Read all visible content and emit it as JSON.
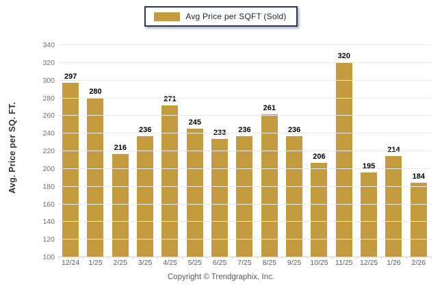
{
  "page": {
    "copyright": "Copyright © Trendgraphix, Inc."
  },
  "legend": {
    "label": "Avg Price per SQFT (Sold)"
  },
  "colors": {
    "bar": "#C49B3E",
    "legend_border": "#24365A",
    "grid": "#e9e9e9",
    "value_label": "#000000"
  },
  "chart_data": {
    "type": "bar",
    "title": "",
    "categories": [
      "12/24",
      "1/25",
      "2/25",
      "3/25",
      "4/25",
      "5/25",
      "6/25",
      "7/25",
      "8/25",
      "9/25",
      "10/25",
      "11/25",
      "12/25",
      "1/26",
      "2/26"
    ],
    "values": [
      297,
      280,
      216,
      236,
      271,
      245,
      233,
      236,
      261,
      236,
      206,
      320,
      195,
      214,
      184
    ],
    "xlabel": "",
    "ylabel": "Avg. Price per SQ. FT.",
    "ylim": [
      100,
      340
    ],
    "ytick_step": 20,
    "grid": true,
    "legend": [
      "Avg Price per SQFT (Sold)"
    ],
    "legend_position": "top"
  }
}
